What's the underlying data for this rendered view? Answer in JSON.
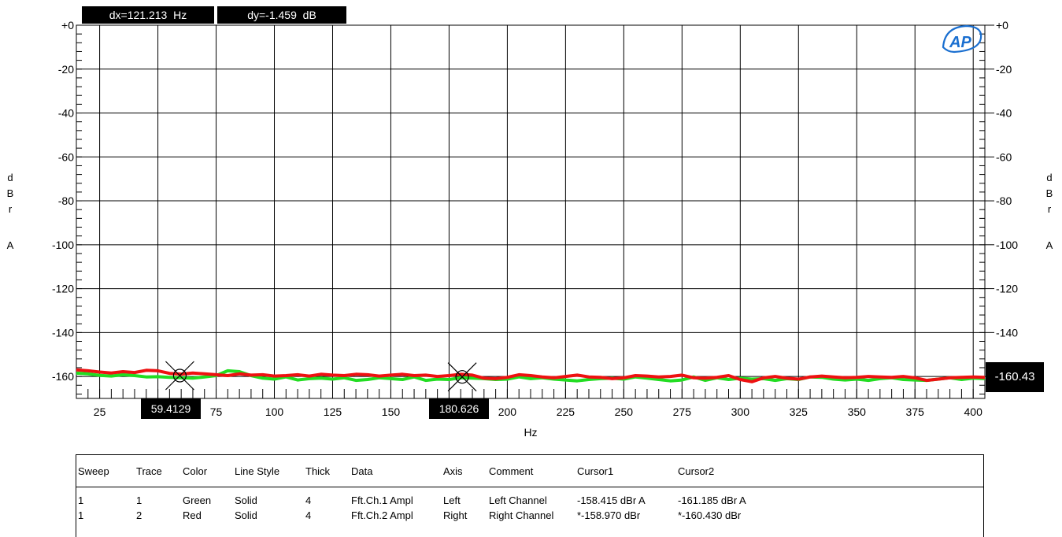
{
  "chart_data": {
    "type": "line",
    "x_unit": "Hz",
    "xlabel": "Hz",
    "ylabel_left": "dBr A",
    "ylabel_right": "dBr A",
    "xlim": [
      15,
      405
    ],
    "ylim": [
      -170,
      0
    ],
    "x_ticks": [
      25,
      50,
      75,
      100,
      125,
      150,
      175,
      200,
      225,
      250,
      275,
      300,
      325,
      350,
      375,
      400
    ],
    "x_tick_labels": [
      "25",
      "",
      "75",
      "100",
      "125",
      "150",
      "",
      "200",
      "225",
      "250",
      "275",
      "300",
      "325",
      "350",
      "375",
      "400"
    ],
    "y_ticks": [
      0,
      -20,
      -40,
      -60,
      -80,
      -100,
      -120,
      -140,
      -160
    ],
    "y_tick_labels": [
      "+0",
      "-20",
      "-40",
      "-60",
      "-80",
      "-100",
      "-120",
      "-140",
      "-160"
    ],
    "y_tick_labels_right": [
      "+0",
      "-20",
      "-40",
      "-60",
      "-80",
      "-100",
      "-120",
      "-140",
      "-160"
    ],
    "grid": true,
    "series": [
      {
        "name": "Fft.Ch.1 Ampl",
        "color": "#22dd22",
        "x": [
          15,
          20,
          25,
          30,
          35,
          40,
          45,
          50,
          55,
          60,
          65,
          70,
          75,
          80,
          85,
          90,
          95,
          100,
          105,
          110,
          115,
          120,
          125,
          130,
          135,
          140,
          145,
          150,
          155,
          160,
          165,
          170,
          175,
          180,
          185,
          190,
          195,
          200,
          205,
          210,
          215,
          220,
          225,
          230,
          235,
          240,
          245,
          250,
          255,
          260,
          265,
          270,
          275,
          280,
          285,
          290,
          295,
          300,
          305,
          310,
          315,
          320,
          325,
          330,
          335,
          340,
          345,
          350,
          355,
          360,
          365,
          370,
          375,
          380,
          385,
          390,
          395,
          400,
          405
        ],
        "y": [
          -158.5,
          -158.8,
          -159.5,
          -159.8,
          -159.2,
          -159.6,
          -160.2,
          -160.1,
          -160.4,
          -160.6,
          -160.8,
          -160.2,
          -159.6,
          -157.4,
          -157.8,
          -159.6,
          -160.8,
          -161.2,
          -160.2,
          -161.6,
          -161.0,
          -160.8,
          -161.2,
          -160.6,
          -161.8,
          -161.4,
          -160.6,
          -161.0,
          -161.4,
          -160.2,
          -161.8,
          -161.2,
          -161.4,
          -160.6,
          -160.8,
          -161.0,
          -161.4,
          -161.2,
          -160.2,
          -161.0,
          -160.6,
          -161.2,
          -161.6,
          -162.0,
          -161.4,
          -161.0,
          -160.8,
          -161.2,
          -160.2,
          -160.8,
          -161.4,
          -162.0,
          -161.6,
          -160.2,
          -161.8,
          -160.6,
          -161.4,
          -160.8,
          -161.2,
          -161.0,
          -161.8,
          -161.0,
          -161.4,
          -160.2,
          -160.4,
          -161.2,
          -161.6,
          -161.2,
          -161.8,
          -161.0,
          -160.6,
          -161.4,
          -161.6,
          -161.8,
          -161.2,
          -160.6,
          -161.4,
          -160.8,
          -161.0
        ]
      },
      {
        "name": "Fft.Ch.2 Ampl",
        "color": "#ee1111",
        "x": [
          15,
          20,
          25,
          30,
          35,
          40,
          45,
          50,
          55,
          60,
          65,
          70,
          75,
          80,
          85,
          90,
          95,
          100,
          105,
          110,
          115,
          120,
          125,
          130,
          135,
          140,
          145,
          150,
          155,
          160,
          165,
          170,
          175,
          180,
          185,
          190,
          195,
          200,
          205,
          210,
          215,
          220,
          225,
          230,
          235,
          240,
          245,
          250,
          255,
          260,
          265,
          270,
          275,
          280,
          285,
          290,
          295,
          300,
          305,
          310,
          315,
          320,
          325,
          330,
          335,
          340,
          345,
          350,
          355,
          360,
          365,
          370,
          375,
          380,
          385,
          390,
          395,
          400,
          405
        ],
        "y": [
          -157.0,
          -157.4,
          -158.0,
          -158.4,
          -157.8,
          -158.2,
          -157.2,
          -157.4,
          -158.6,
          -158.9,
          -158.4,
          -158.8,
          -159.2,
          -159.6,
          -158.8,
          -159.4,
          -159.2,
          -159.8,
          -159.6,
          -159.2,
          -159.8,
          -159.0,
          -159.4,
          -159.6,
          -159.0,
          -159.2,
          -159.8,
          -159.4,
          -159.0,
          -159.6,
          -159.4,
          -160.0,
          -159.6,
          -159.0,
          -159.4,
          -160.8,
          -161.0,
          -160.4,
          -159.2,
          -159.6,
          -160.2,
          -160.6,
          -160.0,
          -159.4,
          -160.2,
          -160.4,
          -161.0,
          -160.6,
          -159.6,
          -159.8,
          -160.2,
          -160.0,
          -159.4,
          -160.6,
          -160.8,
          -160.4,
          -159.6,
          -161.4,
          -162.4,
          -160.6,
          -160.0,
          -160.8,
          -161.2,
          -160.2,
          -159.8,
          -160.2,
          -160.6,
          -160.4,
          -160.0,
          -160.2,
          -160.4,
          -160.0,
          -160.6,
          -161.8,
          -161.2,
          -160.6,
          -160.4,
          -160.2,
          -160.4
        ]
      }
    ],
    "cursors": [
      {
        "x": 59.4129,
        "y": -159.6,
        "label": "59.4129"
      },
      {
        "x": 180.626,
        "y": -160.2,
        "label": "180.626"
      }
    ],
    "right_readout": "-160.43",
    "dx_label": "dx=121.213  Hz",
    "dy_label": "dy=-1.459  dB",
    "legend": "table-bottom"
  },
  "logo_text": "AP",
  "legend_table": {
    "headers": [
      "Sweep",
      "Trace",
      "Color",
      "Line Style",
      "Thick",
      "Data",
      "Axis",
      "Comment",
      "Cursor1",
      "Cursor2"
    ],
    "rows": [
      [
        "1",
        "1",
        "Green",
        "Solid",
        "4",
        "Fft.Ch.1 Ampl",
        "Left",
        "Left Channel",
        "-158.415 dBr A",
        "-161.185 dBr A"
      ],
      [
        "1",
        "2",
        "Red",
        "Solid",
        "4",
        "Fft.Ch.2 Ampl",
        "Right",
        "Right Channel",
        "*-158.970 dBr",
        "*-160.430 dBr"
      ]
    ]
  }
}
